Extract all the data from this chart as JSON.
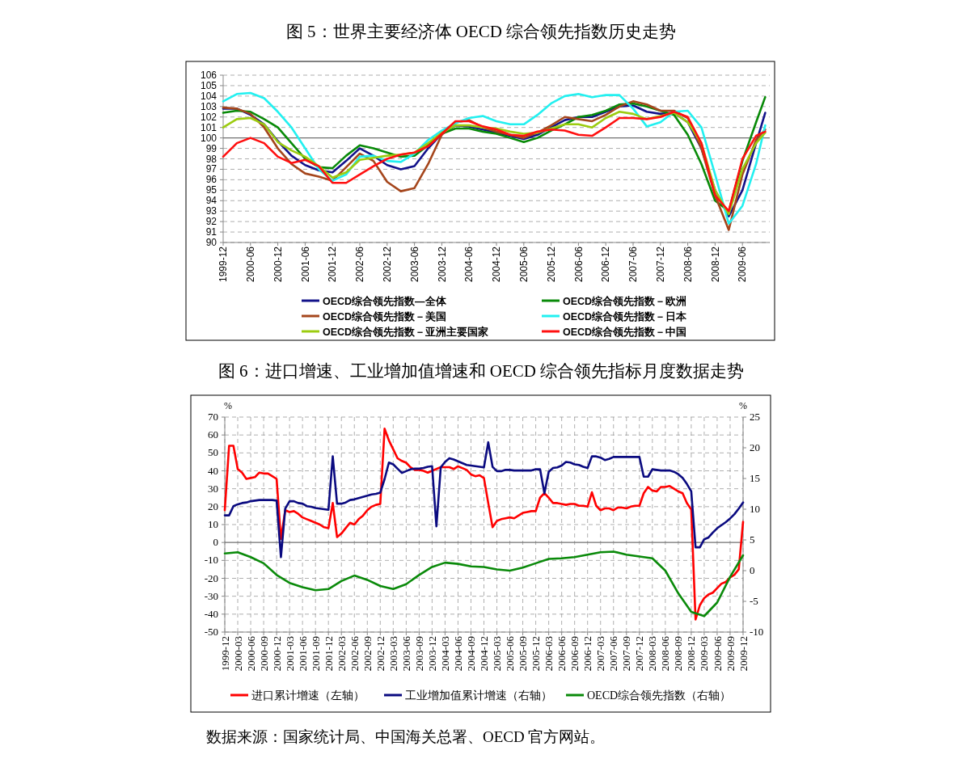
{
  "chart_data": [
    {
      "type": "line",
      "title": "图 5：世界主要经济体 OECD 综合领先指数历史走势",
      "x": [
        "1999-12",
        "2000-03",
        "2000-06",
        "2000-09",
        "2000-12",
        "2001-03",
        "2001-06",
        "2001-09",
        "2001-12",
        "2002-03",
        "2002-06",
        "2002-09",
        "2002-12",
        "2003-03",
        "2003-06",
        "2003-09",
        "2003-12",
        "2004-03",
        "2004-06",
        "2004-09",
        "2004-12",
        "2005-03",
        "2005-06",
        "2005-09",
        "2005-12",
        "2006-03",
        "2006-06",
        "2006-09",
        "2006-12",
        "2007-03",
        "2007-06",
        "2007-09",
        "2007-12",
        "2008-03",
        "2008-06",
        "2008-09",
        "2008-12",
        "2009-03",
        "2009-06",
        "2009-09",
        "2009-11"
      ],
      "series": [
        {
          "name": "OECD综合领先指数—全体",
          "color": "#12128a",
          "values": [
            102.8,
            102.8,
            102.2,
            101.3,
            99.7,
            98.3,
            97.4,
            96.9,
            96.7,
            97.8,
            99.0,
            98.3,
            97.4,
            97.0,
            97.3,
            99.0,
            100.4,
            101.2,
            101.1,
            100.8,
            100.5,
            100.2,
            99.9,
            100.3,
            101.0,
            101.7,
            102.0,
            102.0,
            102.5,
            103.0,
            103.1,
            102.5,
            102.3,
            102.4,
            101.5,
            99.0,
            95.0,
            92.5,
            95.0,
            99.5,
            102.4
          ]
        },
        {
          "name": "OECD综合领先指数－欧洲",
          "color": "#088a08",
          "values": [
            102.4,
            102.6,
            102.5,
            101.8,
            101.0,
            99.5,
            98.0,
            97.2,
            97.1,
            98.3,
            99.3,
            99.0,
            98.6,
            98.2,
            98.3,
            99.3,
            100.4,
            100.9,
            100.9,
            100.6,
            100.4,
            100.0,
            99.6,
            100.0,
            100.7,
            101.3,
            102.0,
            102.2,
            102.6,
            103.2,
            103.3,
            103.0,
            102.6,
            102.2,
            100.3,
            97.5,
            94.0,
            93.0,
            97.8,
            101.5,
            103.9
          ]
        },
        {
          "name": "OECD综合领先指数－美国",
          "color": "#a5461c",
          "values": [
            102.9,
            102.8,
            102.3,
            101.0,
            99.0,
            97.5,
            96.6,
            96.3,
            95.9,
            97.2,
            98.5,
            97.8,
            95.8,
            94.9,
            95.2,
            97.5,
            100.3,
            101.5,
            101.7,
            101.0,
            100.6,
            100.3,
            100.0,
            100.5,
            101.2,
            102.0,
            101.8,
            101.6,
            102.2,
            103.0,
            103.5,
            103.2,
            102.6,
            102.6,
            101.9,
            99.0,
            94.5,
            91.2,
            96.5,
            99.8,
            100.8
          ]
        },
        {
          "name": "OECD综合领先指数－日本",
          "color": "#22f0f0",
          "values": [
            103.5,
            104.2,
            104.3,
            103.8,
            102.5,
            101.0,
            99.0,
            97.0,
            95.9,
            96.5,
            98.2,
            98.3,
            97.8,
            97.7,
            98.5,
            99.8,
            100.7,
            101.4,
            101.9,
            102.1,
            101.6,
            101.3,
            101.3,
            102.2,
            103.3,
            104.0,
            104.2,
            103.9,
            104.1,
            104.1,
            102.8,
            101.1,
            101.5,
            102.5,
            102.6,
            101.0,
            96.5,
            91.8,
            93.5,
            97.5,
            101.2
          ]
        },
        {
          "name": "OECD综合领先指数－亚洲主要国家",
          "color": "#9ccc10",
          "values": [
            101.0,
            101.8,
            101.9,
            101.3,
            99.6,
            98.8,
            98.2,
            97.3,
            96.2,
            96.7,
            97.9,
            98.1,
            98.3,
            98.4,
            98.6,
            99.5,
            100.5,
            101.2,
            101.2,
            101.0,
            100.9,
            100.6,
            100.4,
            100.5,
            100.9,
            101.3,
            101.3,
            101.0,
            101.9,
            102.5,
            102.3,
            101.8,
            102.1,
            102.4,
            101.5,
            99.5,
            95.0,
            92.7,
            97.0,
            99.5,
            100.5
          ]
        },
        {
          "name": "OECD综合领先指数－中国",
          "color": "#ff1010",
          "values": [
            98.2,
            99.5,
            100.0,
            99.5,
            98.2,
            97.6,
            97.9,
            97.3,
            95.7,
            95.7,
            96.5,
            97.3,
            98.0,
            98.4,
            98.6,
            99.2,
            100.4,
            101.6,
            101.6,
            101.1,
            100.8,
            100.3,
            100.2,
            100.6,
            100.8,
            100.7,
            100.3,
            100.2,
            101.0,
            101.9,
            101.9,
            101.8,
            102.0,
            102.5,
            102.0,
            99.5,
            94.5,
            93.0,
            98.0,
            100.2,
            100.6
          ]
        }
      ],
      "xlim": [
        "1999-12",
        "2009-12"
      ],
      "xticks": [
        "1999-12",
        "2000-06",
        "2000-12",
        "2001-06",
        "2001-12",
        "2002-06",
        "2002-12",
        "2003-06",
        "2003-12",
        "2004-06",
        "2004-12",
        "2005-06",
        "2005-12",
        "2006-06",
        "2006-12",
        "2007-06",
        "2007-12",
        "2008-06",
        "2008-12",
        "2009-06"
      ],
      "ylim": [
        90,
        106
      ],
      "yticks": [
        90,
        91,
        92,
        93,
        94,
        95,
        96,
        97,
        98,
        99,
        100,
        101,
        102,
        103,
        104,
        105,
        106
      ],
      "ref_lines": [
        {
          "axis": "y",
          "value": 100
        }
      ],
      "grid": "y",
      "legend": "bottom"
    },
    {
      "type": "line",
      "title": "图 6：进口增速、工业增加值增速和 OECD 综合领先指标月度数据走势",
      "ylabel": "%",
      "y2label": "%",
      "x": [
        "1999-12",
        "2000-01",
        "2000-02",
        "2000-03",
        "2000-04",
        "2000-05",
        "2000-06",
        "2000-07",
        "2000-08",
        "2000-09",
        "2000-10",
        "2000-11",
        "2000-12",
        "2001-01",
        "2001-02",
        "2001-03",
        "2001-04",
        "2001-05",
        "2001-06",
        "2001-07",
        "2001-08",
        "2001-09",
        "2001-10",
        "2001-11",
        "2001-12",
        "2002-01",
        "2002-02",
        "2002-03",
        "2002-04",
        "2002-05",
        "2002-06",
        "2002-07",
        "2002-08",
        "2002-09",
        "2002-10",
        "2002-11",
        "2002-12",
        "2003-01",
        "2003-02",
        "2003-03",
        "2003-04",
        "2003-05",
        "2003-06",
        "2003-07",
        "2003-08",
        "2003-09",
        "2003-10",
        "2003-11",
        "2003-12",
        "2004-01",
        "2004-02",
        "2004-03",
        "2004-04",
        "2004-05",
        "2004-06",
        "2004-07",
        "2004-08",
        "2004-09",
        "2004-10",
        "2004-11",
        "2004-12",
        "2005-01",
        "2005-02",
        "2005-03",
        "2005-04",
        "2005-05",
        "2005-06",
        "2005-07",
        "2005-08",
        "2005-09",
        "2005-10",
        "2005-11",
        "2005-12",
        "2006-01",
        "2006-02",
        "2006-03",
        "2006-04",
        "2006-05",
        "2006-06",
        "2006-07",
        "2006-08",
        "2006-09",
        "2006-10",
        "2006-11",
        "2006-12",
        "2007-01",
        "2007-02",
        "2007-03",
        "2007-04",
        "2007-05",
        "2007-06",
        "2007-07",
        "2007-08",
        "2007-09",
        "2007-10",
        "2007-11",
        "2007-12",
        "2008-01",
        "2008-02",
        "2008-03",
        "2008-04",
        "2008-05",
        "2008-06",
        "2008-07",
        "2008-08",
        "2008-09",
        "2008-10",
        "2008-11",
        "2008-12",
        "2009-01",
        "2009-02",
        "2009-03",
        "2009-04",
        "2009-05",
        "2009-06",
        "2009-07",
        "2009-08",
        "2009-09",
        "2009-10",
        "2009-11",
        "2009-12"
      ],
      "series": [
        {
          "name": "进口累计增速（左轴）",
          "color": "#ff0000",
          "values": [
            18,
            54,
            54,
            41,
            39,
            35.5,
            36,
            36.5,
            39,
            38.5,
            38.5,
            37,
            35.5,
            2,
            18,
            17,
            17.5,
            16,
            14,
            13,
            12,
            11,
            10,
            8.5,
            8,
            22,
            3,
            5,
            8,
            11,
            10,
            13,
            15,
            18,
            20,
            21,
            21.5,
            63.5,
            57,
            52,
            47,
            45.5,
            44.5,
            42,
            40.5,
            40.5,
            40,
            39,
            40,
            41,
            42,
            42,
            42,
            41,
            42.5,
            41.5,
            40.5,
            38,
            37,
            37.5,
            36,
            22,
            8.5,
            12,
            13,
            13.5,
            14,
            13.5,
            15,
            16.5,
            17,
            17.5,
            17.5,
            25,
            27.5,
            25,
            22,
            22,
            21.5,
            21,
            21.5,
            21.5,
            20.5,
            20.5,
            20,
            28,
            20.5,
            18,
            19,
            19,
            18,
            19.5,
            19.5,
            19,
            20,
            20.5,
            20.5,
            27.5,
            31,
            29,
            28.5,
            31,
            31,
            31.5,
            30,
            28.5,
            27.5,
            22,
            18.5,
            -43,
            -35,
            -31,
            -29,
            -28,
            -25.5,
            -23,
            -22,
            -19.5,
            -18,
            -15,
            11.5
          ]
        },
        {
          "name": "工业增加值累计增速（右轴）",
          "color": "#0a0a80",
          "axis": "y2",
          "values": [
            9.0,
            9.0,
            10.5,
            10.8,
            11.0,
            11.1,
            11.3,
            11.4,
            11.5,
            11.5,
            11.5,
            11.5,
            11.4,
            2.2,
            10.1,
            11.3,
            11.3,
            11.0,
            10.9,
            10.5,
            10.4,
            10.2,
            10.1,
            10.0,
            9.9,
            18.6,
            10.9,
            10.9,
            11.1,
            11.5,
            11.6,
            11.8,
            12.0,
            12.2,
            12.4,
            12.5,
            12.7,
            14.9,
            17.6,
            17.3,
            16.6,
            15.9,
            16.2,
            16.5,
            16.6,
            16.6,
            16.7,
            16.9,
            17.0,
            7.2,
            16.8,
            17.7,
            18.3,
            18.1,
            17.8,
            17.5,
            17.2,
            17.1,
            17.0,
            16.9,
            16.8,
            20.9,
            16.9,
            16.2,
            16.2,
            16.4,
            16.4,
            16.3,
            16.3,
            16.3,
            16.3,
            16.3,
            16.5,
            16.5,
            12.6,
            16.1,
            16.7,
            16.8,
            17.1,
            17.7,
            17.6,
            17.3,
            17.2,
            16.9,
            16.7,
            18.6,
            18.6,
            18.4,
            18.0,
            18.2,
            18.5,
            18.5,
            18.5,
            18.5,
            18.5,
            18.5,
            18.5,
            15.3,
            15.3,
            16.5,
            16.4,
            16.3,
            16.3,
            16.3,
            16.1,
            15.7,
            15.1,
            14.1,
            12.9,
            3.8,
            3.8,
            5.1,
            5.4,
            6.2,
            6.9,
            7.4,
            7.9,
            8.5,
            9.2,
            10.1,
            11.1
          ]
        },
        {
          "name": "OECD综合领先指数（右轴）",
          "color": "#0a8a0a",
          "axis": "y2",
          "x": [
            "1999-12",
            "2000-03",
            "2000-06",
            "2000-09",
            "2000-12",
            "2001-03",
            "2001-06",
            "2001-09",
            "2001-12",
            "2002-03",
            "2002-06",
            "2002-09",
            "2002-12",
            "2003-03",
            "2003-06",
            "2003-09",
            "2003-12",
            "2004-03",
            "2004-06",
            "2004-09",
            "2004-12",
            "2005-03",
            "2005-06",
            "2005-09",
            "2005-12",
            "2006-03",
            "2006-06",
            "2006-09",
            "2006-12",
            "2007-03",
            "2007-06",
            "2007-09",
            "2007-12",
            "2008-03",
            "2008-06",
            "2008-09",
            "2008-12",
            "2009-03",
            "2009-06",
            "2009-09",
            "2009-12"
          ],
          "values": [
            2.8,
            3.0,
            2.2,
            1.2,
            -0.7,
            -2.0,
            -2.7,
            -3.2,
            -3.0,
            -1.7,
            -0.8,
            -1.5,
            -2.5,
            -3.0,
            -2.2,
            -0.7,
            0.6,
            1.3,
            1.1,
            0.7,
            0.6,
            0.2,
            0.0,
            0.5,
            1.2,
            1.9,
            2.0,
            2.2,
            2.6,
            3.0,
            3.1,
            2.6,
            2.3,
            2.0,
            0.0,
            -3.7,
            -6.7,
            -7.4,
            -5.2,
            -1.0,
            2.5
          ]
        }
      ],
      "xlim": [
        "1999-12",
        "2009-12"
      ],
      "xticks": [
        "1999-12",
        "2000-03",
        "2000-06",
        "2000-09",
        "2000-12",
        "2001-03",
        "2001-06",
        "2001-09",
        "2001-12",
        "2002-03",
        "2002-06",
        "2002-09",
        "2002-12",
        "2003-03",
        "2003-06",
        "2003-09",
        "2003-12",
        "2004-03",
        "2004-06",
        "2004-09",
        "2004-12",
        "2005-03",
        "2005-06",
        "2005-09",
        "2005-12",
        "2006-03",
        "2006-06",
        "2006-09",
        "2006-12",
        "2007-03",
        "2007-06",
        "2007-09",
        "2007-12",
        "2008-03",
        "2008-06",
        "2008-09",
        "2008-12",
        "2009-03",
        "2009-06",
        "2009-09",
        "2009-12"
      ],
      "ylim": [
        -50,
        70
      ],
      "yticks": [
        -50,
        -40,
        -30,
        -20,
        -10,
        0,
        10,
        20,
        30,
        40,
        50,
        60,
        70
      ],
      "y2lim": [
        -10,
        25
      ],
      "y2ticks": [
        -10,
        -5,
        0,
        5,
        10,
        15,
        20,
        25
      ],
      "ref_lines": [
        {
          "axis": "y",
          "value": 0
        }
      ],
      "grid": true,
      "legend": "bottom",
      "annotations": [
        "数据来源：国家统计局、中国海关总署、OECD 官方网站。"
      ]
    }
  ]
}
